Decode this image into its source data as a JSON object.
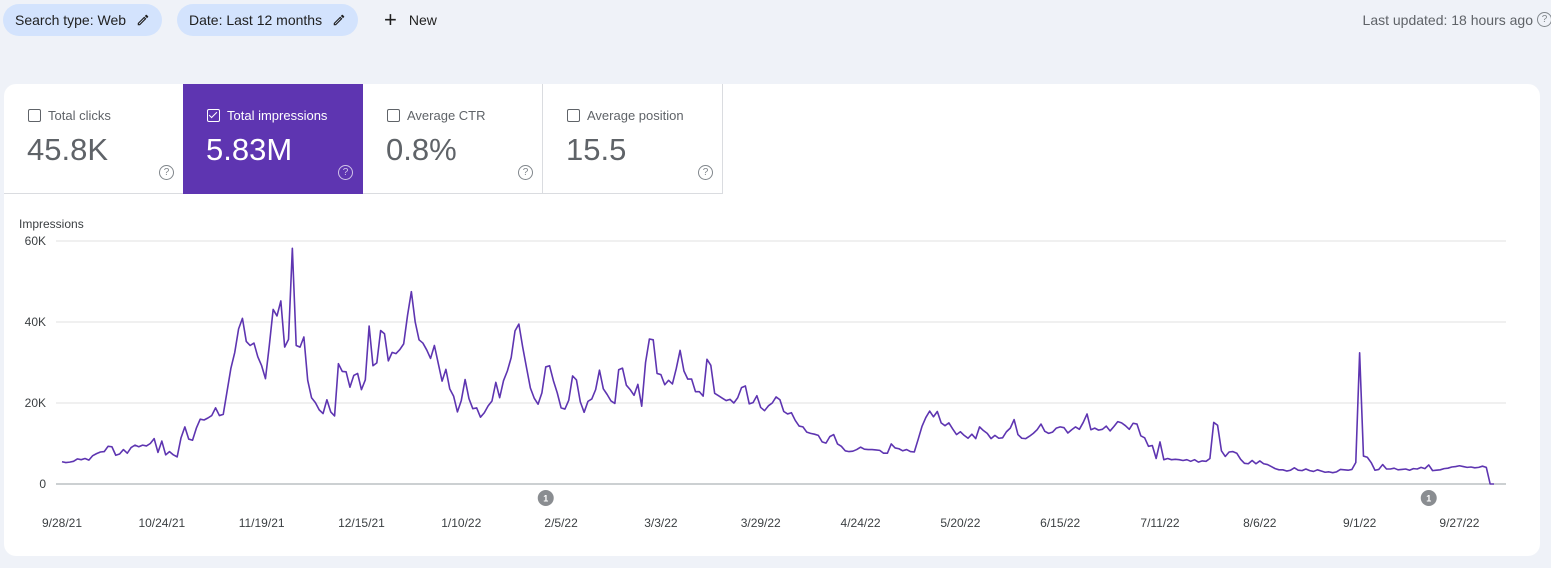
{
  "filters": {
    "search_type": "Search type: Web",
    "date": "Date: Last 12 months",
    "new_label": "New"
  },
  "last_updated": "Last updated: 18 hours ago",
  "metrics": [
    {
      "label": "Total clicks",
      "value": "45.8K",
      "checked": false
    },
    {
      "label": "Total impressions",
      "value": "5.83M",
      "checked": true
    },
    {
      "label": "Average CTR",
      "value": "0.8%",
      "checked": false
    },
    {
      "label": "Average position",
      "value": "15.5",
      "checked": false
    }
  ],
  "colors": {
    "accent": "#5e35b1",
    "chip": "#d3e3fd",
    "background": "#eff2f8"
  },
  "annotations": [
    {
      "label": "1",
      "date_index": 126
    },
    {
      "label": "1",
      "date_index": 356
    }
  ],
  "chart_data": {
    "type": "line",
    "ylabel": "Impressions",
    "ylim": [
      0,
      60000
    ],
    "yticks": [
      "0",
      "20K",
      "40K",
      "60K"
    ],
    "ytick_values": [
      0,
      20000,
      40000,
      60000
    ],
    "xticks": [
      "9/28/21",
      "10/24/21",
      "11/19/21",
      "12/15/21",
      "1/10/22",
      "2/5/22",
      "3/3/22",
      "3/29/22",
      "4/24/22",
      "5/20/22",
      "6/15/22",
      "7/11/22",
      "8/6/22",
      "9/1/22",
      "9/27/22"
    ],
    "xtick_index": [
      0,
      26,
      52,
      78,
      104,
      130,
      156,
      182,
      208,
      234,
      260,
      286,
      312,
      338,
      364
    ],
    "grid": true,
    "series": [
      {
        "color": "#5e35b1",
        "x_start": "9/28/21",
        "x_end": "9/27/22",
        "values": [
          5500,
          5300,
          5400,
          5600,
          6200,
          6000,
          6300,
          5900,
          7000,
          7500,
          7900,
          8000,
          9300,
          9200,
          7100,
          7400,
          8500,
          7600,
          9000,
          9600,
          9200,
          9600,
          9400,
          10000,
          11200,
          7800,
          10600,
          7200,
          8000,
          7200,
          6700,
          11400,
          14100,
          11100,
          10800,
          13800,
          16000,
          15800,
          16300,
          16900,
          18800,
          16900,
          17200,
          22900,
          28600,
          32500,
          38300,
          40900,
          35200,
          34200,
          34800,
          31400,
          29200,
          26000,
          34200,
          43100,
          41500,
          45200,
          33800,
          35700,
          58200,
          34200,
          33800,
          36300,
          25600,
          21300,
          20100,
          18300,
          17400,
          20800,
          17800,
          16800,
          29700,
          27800,
          27700,
          23900,
          26800,
          27300,
          23300,
          25700,
          39000,
          29200,
          29900,
          37900,
          37100,
          30400,
          32500,
          32200,
          33200,
          34600,
          41600,
          47500,
          40000,
          35600,
          34800,
          33100,
          31000,
          34200,
          29800,
          25400,
          28300,
          23500,
          21700,
          17800,
          20600,
          25800,
          21100,
          18600,
          18800,
          16500,
          17600,
          19300,
          20500,
          25100,
          21300,
          25500,
          27900,
          31200,
          37800,
          39500,
          33800,
          28700,
          23700,
          21200,
          19700,
          22500,
          28900,
          29200,
          25500,
          22500,
          18800,
          18500,
          20700,
          26700,
          25700,
          20300,
          17700,
          20400,
          21000,
          23300,
          28100,
          23500,
          22100,
          20500,
          19900,
          28200,
          28600,
          24400,
          23300,
          21900,
          24600,
          19200,
          30000,
          35800,
          35600,
          27300,
          27000,
          24500,
          25600,
          24700,
          28500,
          33000,
          27900,
          25900,
          25900,
          22800,
          22800,
          21700,
          30800,
          29300,
          22400,
          21800,
          21200,
          20600,
          20900,
          20000,
          21300,
          23800,
          24200,
          19800,
          20100,
          21800,
          18900,
          18100,
          19300,
          20000,
          21500,
          20800,
          17900,
          17300,
          17600,
          15700,
          14300,
          14100,
          12800,
          12500,
          12300,
          12000,
          10400,
          10100,
          11700,
          12200,
          9900,
          9300,
          8200,
          8000,
          8100,
          8500,
          9100,
          8600,
          8500,
          8500,
          8400,
          8300,
          7600,
          7600,
          9900,
          8900,
          8700,
          8200,
          8500,
          8000,
          7900,
          11000,
          14200,
          16400,
          18000,
          16600,
          17900,
          15100,
          14400,
          15100,
          13600,
          12200,
          12900,
          12000,
          11300,
          12300,
          11200,
          14100,
          13200,
          12500,
          11200,
          12000,
          11300,
          11400,
          12900,
          13800,
          15900,
          12200,
          11300,
          11200,
          11800,
          12500,
          13400,
          14800,
          13000,
          12500,
          12800,
          13800,
          14100,
          13900,
          12600,
          13400,
          14100,
          13500,
          15200,
          17300,
          13400,
          13800,
          13300,
          13500,
          14300,
          13100,
          14200,
          15400,
          15100,
          14400,
          13500,
          15000,
          14800,
          11900,
          11400,
          9300,
          9500,
          6300,
          10400,
          6000,
          6300,
          6000,
          6100,
          6000,
          5800,
          6000,
          5600,
          6000,
          5400,
          5700,
          5600,
          6300,
          15200,
          14500,
          8200,
          6800,
          7900,
          8000,
          7600,
          6100,
          5100,
          5000,
          5800,
          5000,
          5700,
          5000,
          4800,
          4300,
          3800,
          3500,
          3500,
          3200,
          3400,
          4000,
          3400,
          3300,
          3700,
          3300,
          3100,
          3500,
          3200,
          2900,
          3000,
          2800,
          3000,
          3600,
          3500,
          3400,
          3600,
          5300,
          32400,
          6900,
          6600,
          5300,
          3400,
          3600,
          4800,
          3700,
          3700,
          3900,
          3500,
          3600,
          3700,
          3400,
          3800,
          3700,
          4100,
          3800,
          4700,
          3300,
          3400,
          3500,
          3800,
          3900,
          4200,
          4300,
          4500,
          4300,
          4100,
          4200,
          4000,
          4100,
          4400,
          4100,
          0,
          0
        ]
      }
    ]
  }
}
